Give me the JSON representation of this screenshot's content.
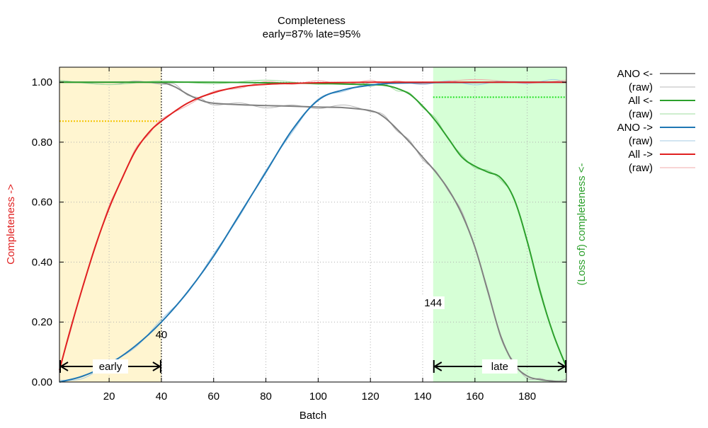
{
  "chart_data": {
    "type": "line",
    "title": "Completeness",
    "subtitle": "early=87% late=95%",
    "xlabel": "Batch",
    "ylabel": "Completeness ->",
    "y2label": "(Loss of) completeness <-",
    "xlim": [
      1,
      195
    ],
    "ylim": [
      0,
      1.05
    ],
    "xticks": [
      20,
      40,
      60,
      80,
      100,
      120,
      140,
      160,
      180
    ],
    "yticks": [
      0,
      0.2,
      0.4,
      0.6,
      0.8,
      1.0
    ],
    "ytick_labels": [
      "0.00",
      "0.20",
      "0.40",
      "0.60",
      "0.80",
      "1.00"
    ],
    "grid": true,
    "legend_position": "right",
    "regions": [
      {
        "label": "early",
        "x_from": 1,
        "x_to": 40,
        "color": "#fff5d0",
        "marker_label": "40",
        "marker_x": 40,
        "threshold_y": 0.87,
        "threshold_color": "#f5c400"
      },
      {
        "label": "late",
        "x_from": 144,
        "x_to": 195,
        "color": "#d6ffd6",
        "marker_label": "144",
        "marker_x": 144,
        "threshold_y": 0.95,
        "threshold_color": "#22e022"
      }
    ],
    "series": [
      {
        "name": "ANO <-",
        "raw_label": "(raw)",
        "color": "#808080",
        "raw_color": "#b8b8b8",
        "x": [
          1,
          20,
          30,
          40,
          45,
          50,
          55,
          60,
          70,
          80,
          90,
          100,
          110,
          120,
          125,
          130,
          135,
          140,
          145,
          150,
          155,
          160,
          165,
          170,
          175,
          180,
          185,
          190,
          195
        ],
        "y": [
          1.0,
          1.0,
          1.0,
          0.998,
          0.985,
          0.96,
          0.94,
          0.93,
          0.925,
          0.922,
          0.92,
          0.917,
          0.915,
          0.905,
          0.885,
          0.845,
          0.8,
          0.75,
          0.7,
          0.64,
          0.56,
          0.45,
          0.3,
          0.15,
          0.06,
          0.02,
          0.008,
          0.003,
          0.001
        ]
      },
      {
        "name": "All <-",
        "raw_label": "(raw)",
        "color": "#2ca02c",
        "raw_color": "#9edc9e",
        "x": [
          1,
          20,
          40,
          60,
          80,
          100,
          115,
          120,
          125,
          130,
          135,
          140,
          145,
          150,
          155,
          160,
          165,
          170,
          175,
          180,
          185,
          190,
          195
        ],
        "y": [
          1.0,
          1.0,
          1.0,
          1.0,
          0.998,
          0.996,
          0.993,
          0.992,
          0.99,
          0.98,
          0.96,
          0.92,
          0.87,
          0.81,
          0.75,
          0.72,
          0.7,
          0.68,
          0.61,
          0.47,
          0.3,
          0.16,
          0.05
        ]
      },
      {
        "name": "ANO ->",
        "raw_label": "(raw)",
        "color": "#1f77b4",
        "raw_color": "#a6cbe4",
        "x": [
          1,
          10,
          20,
          30,
          40,
          50,
          60,
          70,
          80,
          90,
          100,
          110,
          120,
          125,
          130,
          140,
          150,
          160,
          170,
          180,
          190,
          195
        ],
        "y": [
          0.0,
          0.02,
          0.06,
          0.12,
          0.2,
          0.3,
          0.42,
          0.56,
          0.7,
          0.84,
          0.94,
          0.975,
          0.99,
          0.995,
          0.997,
          0.998,
          0.999,
          0.999,
          1.0,
          1.0,
          1.0,
          1.0
        ]
      },
      {
        "name": "All ->",
        "raw_label": "(raw)",
        "color": "#e02020",
        "raw_color": "#f0a8a8",
        "x": [
          1,
          5,
          10,
          15,
          20,
          25,
          30,
          35,
          40,
          50,
          60,
          70,
          80,
          90,
          100,
          110,
          120,
          125,
          130,
          140,
          160,
          180,
          195
        ],
        "y": [
          0.04,
          0.17,
          0.32,
          0.46,
          0.58,
          0.68,
          0.77,
          0.83,
          0.87,
          0.93,
          0.965,
          0.985,
          0.993,
          0.996,
          0.998,
          0.999,
          1.0,
          1.0,
          1.0,
          1.0,
          1.0,
          1.0,
          1.0
        ]
      }
    ]
  }
}
